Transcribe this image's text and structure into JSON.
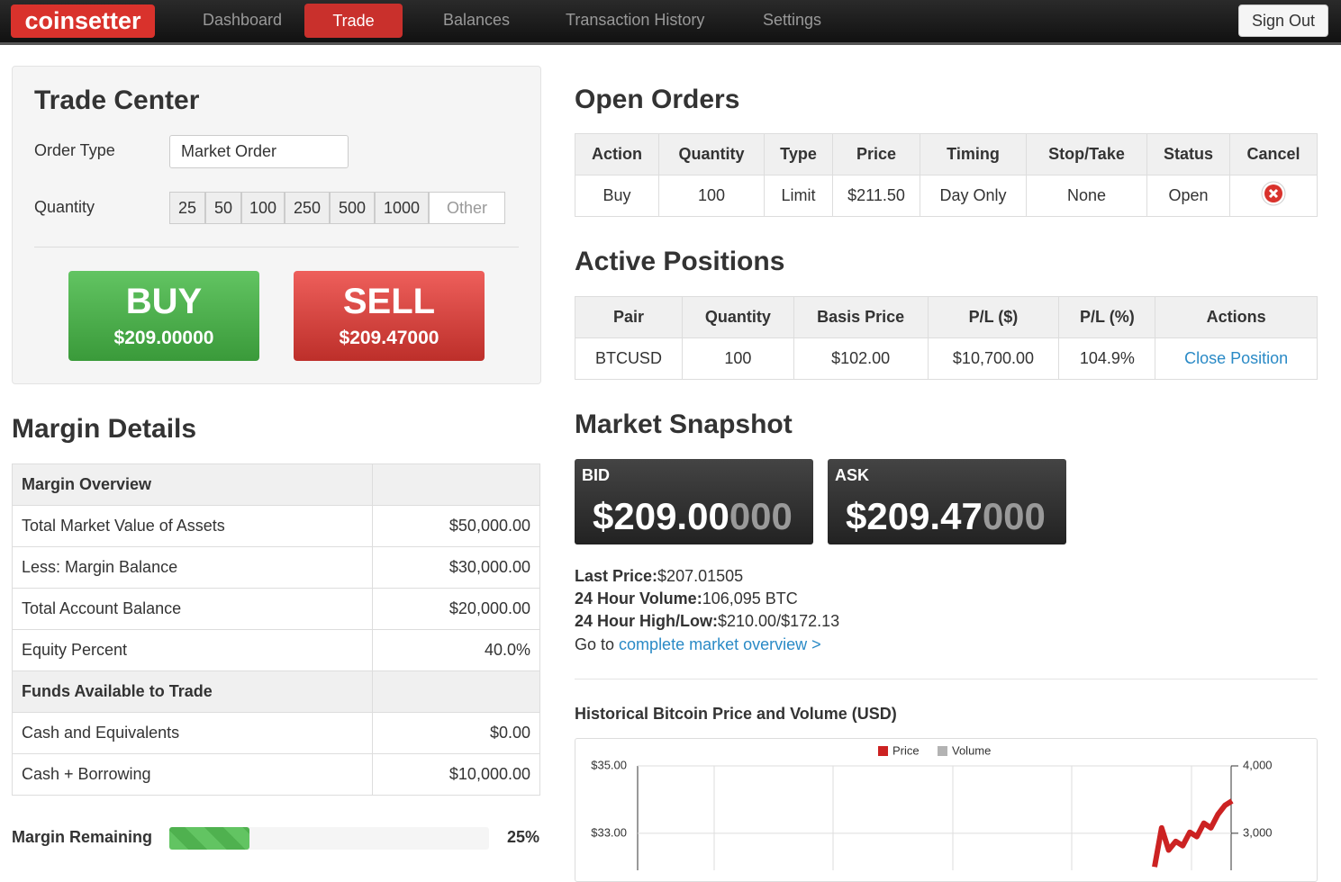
{
  "nav": {
    "brand": "coinsetter",
    "items": [
      "Dashboard",
      "Trade",
      "Balances",
      "Transaction History",
      "Settings"
    ],
    "sign_out": "Sign Out"
  },
  "trade_center": {
    "title": "Trade Center",
    "order_type_label": "Order Type",
    "order_type": "Market Order",
    "quantity_label": "Quantity",
    "quantities": [
      "25",
      "50",
      "100",
      "250",
      "500",
      "1000"
    ],
    "other": "Other",
    "buy": {
      "label": "BUY",
      "price": "$209.00000"
    },
    "sell": {
      "label": "SELL",
      "price": "$209.47000"
    }
  },
  "margin_details": {
    "title": "Margin Details",
    "sections": [
      {
        "heading": "Margin Overview",
        "rows": [
          [
            "Total Market Value of Assets",
            "$50,000.00"
          ],
          [
            "Less: Margin Balance",
            "$30,000.00"
          ],
          [
            "Total Account Balance",
            "$20,000.00"
          ],
          [
            "Equity Percent",
            "40.0%"
          ]
        ]
      },
      {
        "heading": "Funds Available to Trade",
        "rows": [
          [
            "Cash and Equivalents",
            "$0.00"
          ],
          [
            "Cash + Borrowing",
            "$10,000.00"
          ]
        ]
      }
    ]
  },
  "margin_remaining": {
    "label": "Margin Remaining",
    "value": 25,
    "value_label": "25%"
  },
  "open_orders": {
    "title": "Open Orders",
    "columns": [
      "Action",
      "Quantity",
      "Type",
      "Price",
      "Timing",
      "Stop/Take",
      "Status",
      "Cancel"
    ],
    "rows": [
      [
        "Buy",
        "100",
        "Limit",
        "$211.50",
        "Day Only",
        "None",
        "Open"
      ]
    ]
  },
  "active_positions": {
    "title": "Active Positions",
    "columns": [
      "Pair",
      "Quantity",
      "Basis Price",
      "P/L ($)",
      "P/L (%)",
      "Actions"
    ],
    "rows": [
      [
        "BTCUSD",
        "100",
        "$102.00",
        "$10,700.00",
        "104.9%",
        "Close Position"
      ]
    ]
  },
  "market_snapshot": {
    "title": "Market Snapshot",
    "bid": {
      "label": "BID",
      "main": "$209.00",
      "tail": "000"
    },
    "ask": {
      "label": "ASK",
      "main": "$209.47",
      "tail": "000"
    },
    "stats": [
      {
        "label": "Last Price:",
        "value": "$207.01505"
      },
      {
        "label": "24 Hour Volume:",
        "value": "106,095 BTC"
      },
      {
        "label": "24 Hour High/Low:",
        "value": "$210.00/$172.13"
      }
    ],
    "overview_prefix": "Go to",
    "overview_link": "complete market overview >"
  },
  "chart": {
    "type": "line",
    "title": "Historical Bitcoin Price and Volume (USD)",
    "series": [
      {
        "name": "Price",
        "color": "#cc2222",
        "values": [
          32.0,
          33.16,
          32.5,
          32.76,
          32.63,
          33.03,
          32.9,
          33.3,
          33.16,
          33.56,
          33.83,
          33.96
        ]
      },
      {
        "name": "Volume",
        "color": "#b3b3b3"
      }
    ],
    "ylim": [
      31.9,
      35
    ],
    "yticks": [
      {
        "value": 35,
        "label": "$35.00"
      },
      {
        "value": 33,
        "label": "$33.00"
      }
    ],
    "y2lim": [
      2450,
      4000
    ],
    "y2ticks": [
      {
        "value": 4000,
        "label": "4,000"
      },
      {
        "value": 3000,
        "label": "3,000"
      }
    ],
    "grid": true
  }
}
